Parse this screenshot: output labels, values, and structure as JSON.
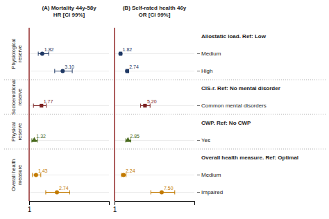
{
  "chart_data": {
    "type": "forest",
    "categories": [
      "Allostatic load. Ref: Low",
      "Medium",
      "High",
      "CIS-r. Ref: No mental disorder",
      "Common mental disorders",
      "CWP. Ref: No CWP",
      "Yes",
      "Overall health measure. Ref: Optimal",
      "Medium",
      "Impaired"
    ],
    "groups": [
      {
        "name": "Physiological\nreserve",
        "size": 3,
        "color": "#1f3864",
        "marker": "circle"
      },
      {
        "name": "Socioemotional\nreserve",
        "size": 2,
        "color": "#7b2020",
        "marker": "square"
      },
      {
        "name": "Physical\nreserve",
        "size": 2,
        "color": "#4a6b1f",
        "marker": "triangle"
      },
      {
        "name": "Overall health\nmeasure",
        "size": 3,
        "color": "#c27a00",
        "marker": "circle"
      }
    ],
    "series": [
      {
        "name": "(A) Mortality 44y-58y\nHR [CI 99%]",
        "values": [
          null,
          1.82,
          3.1,
          null,
          1.77,
          null,
          1.32,
          null,
          1.43,
          2.74
        ],
        "errors_low": [
          null,
          0.25,
          0.5,
          null,
          0.5,
          null,
          0.15,
          null,
          0.22,
          0.7
        ],
        "errors_high": [
          null,
          0.4,
          0.6,
          null,
          0.3,
          null,
          0.2,
          null,
          0.3,
          0.8
        ],
        "value_labels": [
          null,
          "1.82",
          "3.10",
          null,
          "1.77",
          null,
          "1.32",
          null,
          "1.43",
          "2.74"
        ],
        "xlim": [
          1.0,
          6.0
        ],
        "xticks": [
          1
        ]
      },
      {
        "name": "(B) Self-rated health 46y\nOR [CI 99%]",
        "values": [
          null,
          1.82,
          2.74,
          null,
          5.2,
          null,
          2.85,
          null,
          2.24,
          7.5
        ],
        "errors_low": [
          null,
          0.15,
          0.18,
          null,
          0.6,
          null,
          0.3,
          null,
          0.3,
          1.5
        ],
        "errors_high": [
          null,
          0.2,
          0.22,
          null,
          0.7,
          null,
          0.4,
          null,
          0.35,
          1.8
        ],
        "value_labels": [
          null,
          "1.82",
          "2.74",
          null,
          "5.20",
          null,
          "2.85",
          null,
          "2.24",
          "7.50"
        ],
        "xlim": [
          1.0,
          12.0
        ],
        "xticks": [
          1
        ]
      }
    ],
    "vline": {
      "x": 1.0,
      "color": "#8b1a1a"
    },
    "grid": true,
    "data_labels": true
  }
}
